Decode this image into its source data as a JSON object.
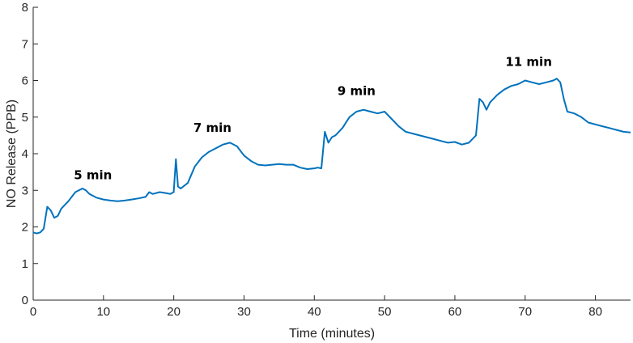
{
  "chart_data": {
    "type": "line",
    "title": "",
    "xlabel": "Time (minutes)",
    "ylabel": "NO Release (PPB)",
    "xlim": [
      0,
      85
    ],
    "ylim": [
      0,
      8
    ],
    "xticks": [
      0,
      10,
      20,
      30,
      40,
      50,
      60,
      70,
      80
    ],
    "yticks": [
      0,
      1,
      2,
      3,
      4,
      5,
      6,
      7,
      8
    ],
    "grid": false,
    "colors": {
      "series": "#0072BD",
      "axis": "#262626"
    },
    "annotations": [
      {
        "text": "5 min",
        "x": 8.5,
        "y": 3.3
      },
      {
        "text": "7 min",
        "x": 25.5,
        "y": 4.6
      },
      {
        "text": "9 min",
        "x": 46,
        "y": 5.6
      },
      {
        "text": "11 min",
        "x": 70.5,
        "y": 6.4
      }
    ],
    "series": [
      {
        "x": [
          0,
          0.5,
          1,
          1.5,
          2,
          2.5,
          3,
          3.5,
          4,
          5,
          6,
          7,
          7.5,
          8,
          9,
          10,
          11,
          12,
          13,
          14,
          15,
          16,
          16.5,
          17,
          18,
          19,
          19.5,
          20,
          20.3,
          20.6,
          21,
          22,
          23,
          24,
          25,
          26,
          27,
          28,
          29,
          30,
          31,
          32,
          33,
          34,
          35,
          36,
          37,
          38,
          39,
          40,
          40.5,
          41,
          41.5,
          42,
          42.5,
          43,
          44,
          45,
          46,
          47,
          48,
          49,
          50,
          51,
          52,
          53,
          54,
          55,
          56,
          57,
          58,
          59,
          60,
          61,
          62,
          62.5,
          63,
          63.5,
          64,
          64.5,
          65,
          66,
          67,
          68,
          69,
          70,
          71,
          72,
          73,
          74,
          74.5,
          75,
          75.5,
          76,
          77,
          78,
          79,
          80,
          81,
          82,
          83,
          84,
          85
        ],
        "y": [
          1.85,
          1.82,
          1.85,
          1.95,
          2.55,
          2.45,
          2.25,
          2.3,
          2.5,
          2.7,
          2.95,
          3.05,
          3.0,
          2.9,
          2.8,
          2.75,
          2.72,
          2.7,
          2.72,
          2.75,
          2.78,
          2.82,
          2.95,
          2.9,
          2.95,
          2.92,
          2.9,
          2.95,
          3.85,
          3.1,
          3.05,
          3.2,
          3.65,
          3.9,
          4.05,
          4.15,
          4.25,
          4.3,
          4.2,
          3.95,
          3.8,
          3.7,
          3.68,
          3.7,
          3.72,
          3.7,
          3.7,
          3.62,
          3.58,
          3.6,
          3.62,
          3.6,
          4.6,
          4.3,
          4.45,
          4.5,
          4.7,
          5.0,
          5.15,
          5.2,
          5.15,
          5.1,
          5.15,
          4.95,
          4.75,
          4.6,
          4.55,
          4.5,
          4.45,
          4.4,
          4.35,
          4.3,
          4.32,
          4.25,
          4.3,
          4.4,
          4.5,
          5.5,
          5.4,
          5.2,
          5.4,
          5.6,
          5.75,
          5.85,
          5.9,
          6.0,
          5.95,
          5.9,
          5.95,
          6.0,
          6.05,
          5.95,
          5.5,
          5.15,
          5.1,
          5.0,
          4.85,
          4.8,
          4.75,
          4.7,
          4.65,
          4.6,
          4.58
        ]
      }
    ]
  }
}
